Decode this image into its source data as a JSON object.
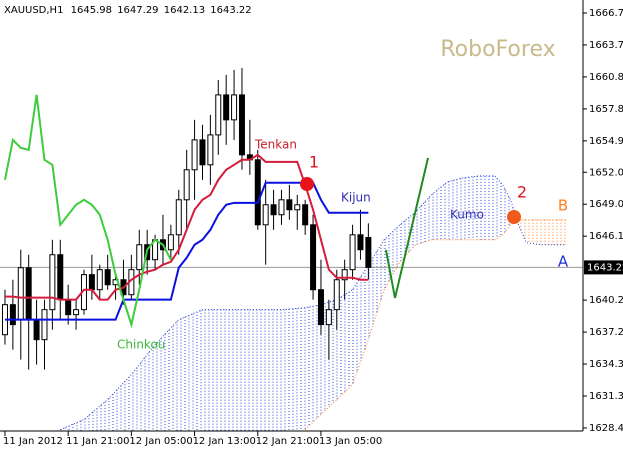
{
  "chart_data": {
    "type": "candlestick",
    "symbol": "XAUUSD,H1",
    "xlim": [
      -0.63,
      73.17
    ],
    "ylim": [
      1628.12,
      1667.9
    ],
    "xticks": [
      {
        "value": 0,
        "label": "11 Jan 2012"
      },
      {
        "value": 8,
        "label": "11 Jan 21:00"
      },
      {
        "value": 16,
        "label": "12 Jan 05:00"
      },
      {
        "value": 24,
        "label": "12 Jan 13:00"
      },
      {
        "value": 32,
        "label": "12 Jan 21:00"
      },
      {
        "value": 40,
        "label": "13 Jan 05:00"
      }
    ],
    "yticks": [
      {
        "value": 1666.7,
        "label": "1666.70"
      },
      1663.75,
      {
        "value": 1660.8,
        "label": "1660.80"
      },
      1657.85,
      {
        "value": 1654.9,
        "label": "1654.90"
      },
      {
        "value": 1652,
        "label": "1652.00"
      },
      1649.05,
      {
        "value": 1646.1,
        "label": "1646.10"
      },
      {
        "value": 1640.2,
        "label": "1640.20"
      },
      1637.25,
      {
        "value": 1634.3,
        "label": "1634.30"
      },
      1631.35,
      {
        "value": 1628.4,
        "label": "1628.40"
      }
    ],
    "last_price": 1643.22,
    "candles": {
      "x": [
        0,
        1,
        2,
        3,
        4,
        5,
        6,
        7,
        8,
        9,
        10,
        11,
        12,
        13,
        14,
        15,
        16,
        17,
        18,
        19,
        20,
        21,
        22,
        23,
        24,
        25,
        26,
        27,
        28,
        29,
        30,
        31,
        32,
        33,
        34,
        35,
        36,
        37,
        38,
        39,
        40,
        41,
        42,
        43,
        44,
        45,
        46
      ],
      "open": [
        1637.01,
        1639.78,
        1638.4,
        1643.19,
        1638.4,
        1636.55,
        1639.32,
        1644.39,
        1640.24,
        1638.86,
        1639.32,
        1642.55,
        1641.16,
        1643.01,
        1641.62,
        1642.08,
        1640.7,
        1643.01,
        1645.31,
        1643.93,
        1645.77,
        1644.85,
        1646.23,
        1649.46,
        1652.23,
        1654.99,
        1652.69,
        1655.45,
        1659.14,
        1656.84,
        1659.14,
        1653.61,
        1653.15,
        1647.15,
        1649.0,
        1648.08,
        1649.46,
        1648.54,
        1649.0,
        1647.15,
        1641.16,
        1637.94,
        1639.32,
        1642.08,
        1643.01,
        1646.23,
        1645.98
      ],
      "high": [
        1641.16,
        1642.08,
        1644.85,
        1644.39,
        1640.24,
        1640.24,
        1645.77,
        1645.77,
        1641.62,
        1640.24,
        1643.01,
        1644.39,
        1643.47,
        1644.39,
        1642.55,
        1643.93,
        1644.39,
        1646.69,
        1646.69,
        1646.23,
        1648.08,
        1647.15,
        1650.38,
        1654.07,
        1656.84,
        1656.38,
        1657.3,
        1660.52,
        1660.99,
        1661.45,
        1661.63,
        1656.84,
        1654.07,
        1651.3,
        1650.38,
        1650.38,
        1650.84,
        1649.92,
        1649.46,
        1648.08,
        1643.93,
        1640.24,
        1643.01,
        1643.93,
        1647.15,
        1648.54,
        1647.29
      ],
      "low": [
        1636.09,
        1635.63,
        1634.71,
        1633.79,
        1634.25,
        1633.79,
        1637.47,
        1638.4,
        1637.94,
        1637.47,
        1638.86,
        1640.24,
        1640.24,
        1641.16,
        1640.24,
        1639.78,
        1640.24,
        1641.62,
        1642.55,
        1643.01,
        1643.47,
        1643.93,
        1644.39,
        1646.69,
        1649.46,
        1651.3,
        1650.84,
        1653.61,
        1654.53,
        1654.99,
        1652.23,
        1651.77,
        1646.69,
        1643.47,
        1646.69,
        1647.15,
        1647.62,
        1646.69,
        1646.23,
        1640.24,
        1637.01,
        1634.71,
        1637.47,
        1640.24,
        1642.08,
        1643.93,
        1642.13
      ],
      "close": [
        1639.78,
        1637.94,
        1643.19,
        1638.4,
        1636.55,
        1639.32,
        1644.39,
        1640.24,
        1638.86,
        1639.32,
        1642.55,
        1641.16,
        1643.01,
        1641.62,
        1642.08,
        1640.7,
        1643.01,
        1645.31,
        1643.93,
        1645.77,
        1644.85,
        1646.23,
        1649.46,
        1652.23,
        1654.99,
        1652.69,
        1655.45,
        1659.14,
        1656.84,
        1659.14,
        1653.61,
        1653.15,
        1647.15,
        1649.0,
        1648.08,
        1649.46,
        1648.54,
        1649.0,
        1647.15,
        1641.16,
        1637.94,
        1639.32,
        1642.08,
        1643.01,
        1646.23,
        1644.85,
        1643.22
      ]
    },
    "series": [
      {
        "name": "Tenkan",
        "color": "#d41c3c",
        "x": [
          0,
          1,
          2,
          3,
          4,
          5,
          6,
          7,
          8,
          9,
          10,
          11,
          12,
          13,
          14,
          15,
          16,
          17,
          18,
          19,
          20,
          21,
          22,
          23,
          24,
          25,
          26,
          27,
          28,
          29,
          30,
          31,
          32,
          33,
          34,
          35,
          36,
          37,
          38,
          39,
          40,
          41,
          42,
          43,
          44,
          45,
          46
        ],
        "values": [
          1640.52,
          1640.52,
          1640.43,
          1640.43,
          1640.43,
          1640.43,
          1640.43,
          1640.24,
          1640.24,
          1640.24,
          1641.16,
          1641.16,
          1640.24,
          1640.24,
          1641.16,
          1641.35,
          1642.08,
          1642.55,
          1642.82,
          1643.01,
          1643.47,
          1643.74,
          1644.85,
          1646.69,
          1648.54,
          1649.46,
          1649.92,
          1651.3,
          1652.23,
          1652.69,
          1653.15,
          1653.15,
          1653.61,
          1652.96,
          1652.96,
          1652.96,
          1652.96,
          1652.96,
          1650.84,
          1648.54,
          1645.77,
          1643.01,
          1642.27,
          1642.27,
          1642.27,
          1642.08,
          1642.08
        ]
      },
      {
        "name": "Kijun",
        "color": "#0a10e0",
        "x": [
          0,
          1,
          2,
          3,
          4,
          5,
          6,
          7,
          8,
          9,
          10,
          11,
          12,
          13,
          14,
          15,
          16,
          17,
          18,
          19,
          20,
          21,
          22,
          23,
          24,
          25,
          26,
          27,
          28,
          29,
          30,
          31,
          32,
          33,
          34,
          35,
          36,
          37,
          38,
          39,
          40,
          41,
          42,
          43,
          44,
          45,
          46
        ],
        "values": [
          1638.4,
          1638.4,
          1638.4,
          1638.4,
          1638.4,
          1638.4,
          1638.4,
          1638.4,
          1638.4,
          1638.4,
          1638.4,
          1638.4,
          1638.4,
          1638.4,
          1638.4,
          1640.24,
          1640.24,
          1640.24,
          1640.24,
          1640.24,
          1640.24,
          1640.24,
          1643.19,
          1644.11,
          1645.31,
          1645.77,
          1646.69,
          1648.08,
          1649.0,
          1649.18,
          1649.18,
          1649.18,
          1649.18,
          1651.03,
          1651.03,
          1651.03,
          1651.03,
          1651.03,
          1651.03,
          1651.03,
          1649.46,
          1648.26,
          1648.26,
          1648.26,
          1648.26,
          1648.26,
          1648.26
        ]
      },
      {
        "name": "Chinkou",
        "color": "#3ccc3c",
        "x": [
          0,
          1,
          2,
          3,
          4,
          5,
          6,
          7,
          8,
          9,
          10,
          11,
          12,
          13,
          14,
          15,
          16,
          17,
          18,
          19,
          20,
          21
        ],
        "values": [
          1651.3,
          1654.99,
          1654.25,
          1654.07,
          1659.14,
          1653.15,
          1652.69,
          1647.15,
          1648.08,
          1649.0,
          1649.46,
          1649.0,
          1648.08,
          1645.77,
          1642.55,
          1640.24,
          1637.94,
          1641.16,
          1644.85,
          1645.77,
          1645.31,
          1643.93
        ]
      }
    ],
    "cloud": {
      "name": "Kumo",
      "color_a": "#2a46d8",
      "color_b": "#ff7a1c",
      "x": [
        7,
        10,
        13,
        16,
        19,
        22,
        25,
        30,
        35,
        38,
        40,
        42,
        44,
        46,
        48,
        50,
        52,
        54,
        56,
        58,
        60,
        62,
        63,
        64,
        65,
        66,
        68,
        71
      ],
      "span_a": [
        1628.25,
        1629.18,
        1631.02,
        1633.33,
        1636.09,
        1638.4,
        1639.32,
        1639.32,
        1639.32,
        1639.5,
        1639.78,
        1640.24,
        1641.16,
        1643.47,
        1645.77,
        1647.15,
        1648.35,
        1649.92,
        1651.12,
        1651.49,
        1651.67,
        1651.67,
        1650.84,
        1649.46,
        1647.15,
        1645.5,
        1645.31,
        1645.31
      ],
      "span_b": [
        null,
        null,
        null,
        null,
        null,
        null,
        null,
        null,
        null,
        1628.25,
        1629.64,
        1631.02,
        1632.4,
        1636.55,
        1641.16,
        1643.74,
        1645.31,
        1645.77,
        1645.77,
        1645.77,
        1645.77,
        1645.77,
        1646.23,
        1647.15,
        1647.62,
        1647.62,
        1647.62,
        1647.62
      ]
    },
    "annotations": [
      "RoboForex",
      "1",
      "2",
      "B",
      "A"
    ]
  }
}
